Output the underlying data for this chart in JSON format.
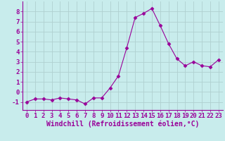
{
  "x": [
    0,
    1,
    2,
    3,
    4,
    5,
    6,
    7,
    8,
    9,
    10,
    11,
    12,
    13,
    14,
    15,
    16,
    17,
    18,
    19,
    20,
    21,
    22,
    23
  ],
  "y": [
    -1.0,
    -0.7,
    -0.7,
    -0.8,
    -0.6,
    -0.7,
    -0.8,
    -1.2,
    -0.6,
    -0.6,
    0.4,
    1.6,
    4.4,
    7.4,
    7.8,
    8.3,
    6.6,
    4.8,
    3.3,
    2.6,
    3.0,
    2.6,
    2.5,
    3.2
  ],
  "line_color": "#990099",
  "marker": "D",
  "marker_size": 2.5,
  "bg_color": "#c8ecec",
  "grid_color": "#b0d0d0",
  "xlabel": "Windchill (Refroidissement éolien,°C)",
  "xlabel_color": "#990099",
  "xlabel_fontsize": 7,
  "tick_color": "#990099",
  "tick_fontsize": 6.5,
  "ylim": [
    -1.8,
    9.0
  ],
  "xlim": [
    -0.5,
    23.5
  ],
  "yticks": [
    -1,
    0,
    1,
    2,
    3,
    4,
    5,
    6,
    7,
    8
  ],
  "xticks": [
    0,
    1,
    2,
    3,
    4,
    5,
    6,
    7,
    8,
    9,
    10,
    11,
    12,
    13,
    14,
    15,
    16,
    17,
    18,
    19,
    20,
    21,
    22,
    23
  ]
}
